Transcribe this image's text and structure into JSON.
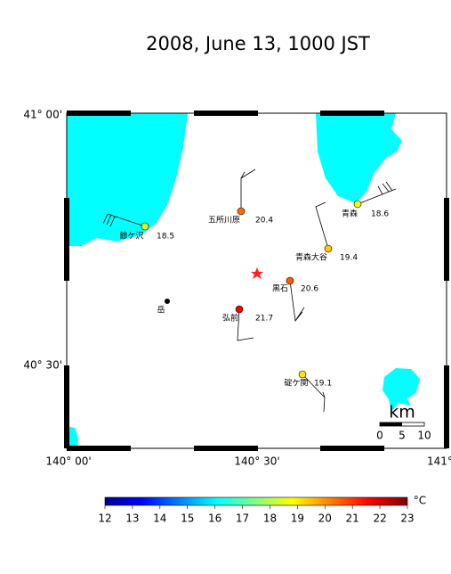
{
  "title": "2008, June 13, 1000 JST",
  "lat_labels": [
    "41° 00'",
    "40° 30'"
  ],
  "lon_labels": [
    "140° 00'",
    "140° 30'",
    "141°"
  ],
  "stations": [
    {
      "name": "鰺ケ沢",
      "temp": 18.5
    },
    {
      "name": "五所川原",
      "temp": 20.4
    },
    {
      "name": "青森",
      "temp": 18.6
    },
    {
      "name": "青森大谷",
      "temp": 19.4
    },
    {
      "name": "黒石",
      "temp": 20.6
    },
    {
      "name": "弘前",
      "temp": 21.7
    },
    {
      "name": "碇ケ関",
      "temp": 19.1
    }
  ],
  "point": {
    "name": "岳"
  },
  "scale": {
    "unit": "km",
    "ticks": [
      0,
      5,
      10
    ]
  },
  "colorbar": {
    "ticks": [
      12,
      13,
      14,
      15,
      16,
      17,
      18,
      19,
      20,
      21,
      22,
      23
    ],
    "unit": "°C"
  }
}
